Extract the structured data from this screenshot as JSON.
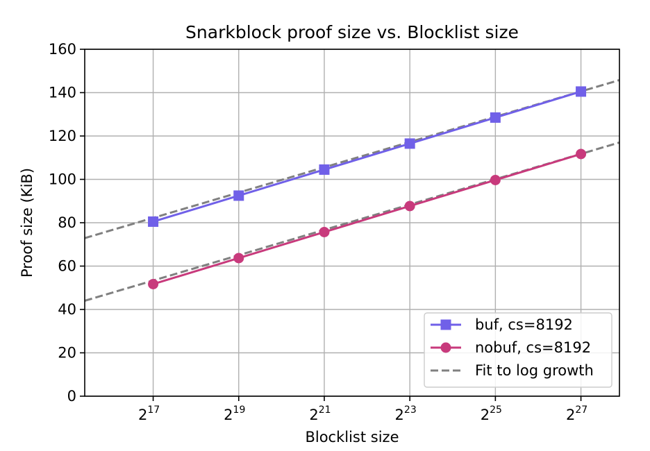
{
  "chart_data": {
    "type": "line",
    "title": "Snarkblock proof size vs. Blocklist size",
    "xlabel": "Blocklist size",
    "ylabel": "Proof size (KiB)",
    "x_scale": "log2",
    "x_tick_base": "2",
    "x_tick_exponents": [
      17,
      19,
      21,
      23,
      25,
      27
    ],
    "xlim_exponent": [
      15.4,
      27.9
    ],
    "ylim": [
      0,
      160
    ],
    "y_ticks": [
      0,
      20,
      40,
      60,
      80,
      100,
      120,
      140,
      160
    ],
    "grid": true,
    "legend_position": "lower-right",
    "colors": {
      "buf": "#7060e8",
      "nobuf": "#c83a7c",
      "fit": "#808080"
    },
    "series": [
      {
        "name": "buf, cs=8192",
        "marker": "square",
        "x_exponent": [
          17,
          19,
          21,
          23,
          25,
          27
        ],
        "values": [
          80.5,
          92.5,
          104.5,
          116.5,
          128.5,
          140.5
        ]
      },
      {
        "name": "nobuf, cs=8192",
        "marker": "circle",
        "x_exponent": [
          17,
          19,
          21,
          23,
          25,
          27
        ],
        "values": [
          51.7,
          63.7,
          75.7,
          87.7,
          99.7,
          111.7
        ]
      }
    ],
    "fit": {
      "name": "Fit to log growth",
      "style": "dashed",
      "lines": [
        {
          "x_exponent": [
            15.4,
            27.9
          ],
          "values": [
            72.9,
            145.8
          ]
        },
        {
          "x_exponent": [
            15.4,
            27.9
          ],
          "values": [
            44.0,
            117.0
          ]
        }
      ]
    }
  }
}
